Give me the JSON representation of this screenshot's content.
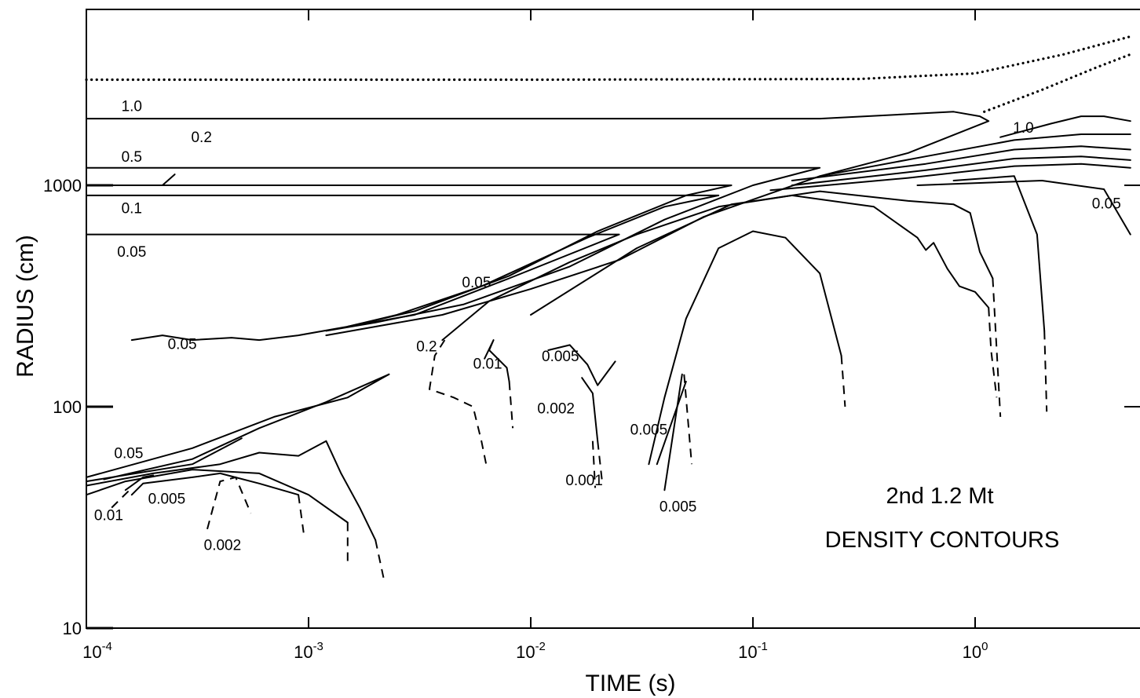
{
  "chart_data": {
    "type": "line",
    "title": "2nd 1.2 Mt",
    "subtitle": "DENSITY CONTOURS",
    "xlabel": "TIME (s)",
    "ylabel": "RADIUS (cm)",
    "x_scale": "log",
    "y_scale": "log",
    "xlim": [
      0.0001,
      5
    ],
    "ylim": [
      10,
      5000
    ],
    "grid": false,
    "legend": "none",
    "x_ticks": [
      {
        "value": 0.0001,
        "base": "10",
        "exp": "-4"
      },
      {
        "value": 0.001,
        "base": "10",
        "exp": "-3"
      },
      {
        "value": 0.01,
        "base": "10",
        "exp": "-2"
      },
      {
        "value": 0.1,
        "base": "10",
        "exp": "-1"
      },
      {
        "value": 1,
        "base": "10",
        "exp": "0"
      }
    ],
    "y_ticks": [
      {
        "value": 10,
        "label": "10"
      },
      {
        "value": 100,
        "label": "100"
      },
      {
        "value": 1000,
        "label": "1000"
      }
    ],
    "series": [
      {
        "style": "dotted",
        "points": [
          [
            0.0001,
            3000
          ],
          [
            0.01,
            3000
          ],
          [
            0.3,
            3020
          ],
          [
            1,
            3200
          ],
          [
            2.5,
            3900
          ],
          [
            5,
            4700
          ]
        ]
      },
      {
        "style": "dotted",
        "points": [
          [
            1.1,
            2150
          ],
          [
            2,
            2700
          ],
          [
            3.5,
            3400
          ],
          [
            5,
            3900
          ]
        ]
      },
      {
        "style": "solid",
        "points": [
          [
            0.0001,
            2000
          ],
          [
            0.2,
            2000
          ],
          [
            0.8,
            2150
          ],
          [
            1.05,
            2050
          ],
          [
            1.15,
            1950
          ],
          [
            0.5,
            1400
          ],
          [
            0.2,
            1100
          ],
          [
            0.06,
            720
          ],
          [
            0.025,
            460
          ],
          [
            0.01,
            340
          ],
          [
            0.004,
            260
          ],
          [
            0.002,
            230
          ],
          [
            0.0012,
            210
          ]
        ]
      },
      {
        "style": "solid",
        "points": [
          [
            0.0001,
            1200
          ],
          [
            0.2,
            1200
          ],
          [
            0.1,
            1000
          ],
          [
            0.04,
            700
          ],
          [
            0.015,
            430
          ],
          [
            0.005,
            290
          ],
          [
            0.002,
            240
          ],
          [
            0.0012,
            220
          ]
        ]
      },
      {
        "style": "solid",
        "points": [
          [
            0.0001,
            1000
          ],
          [
            0.08,
            1000
          ],
          [
            0.05,
            900
          ],
          [
            0.02,
            620
          ],
          [
            0.008,
            390
          ],
          [
            0.003,
            270
          ],
          [
            0.0015,
            230
          ]
        ]
      },
      {
        "style": "solid",
        "points": [
          [
            0.0001,
            900
          ],
          [
            0.07,
            900
          ],
          [
            0.04,
            800
          ],
          [
            0.018,
            580
          ],
          [
            0.006,
            350
          ],
          [
            0.0025,
            260
          ],
          [
            0.0015,
            230
          ]
        ]
      },
      {
        "style": "solid",
        "points": [
          [
            0.0001,
            600
          ],
          [
            0.025,
            600
          ],
          [
            0.008,
            380
          ],
          [
            0.003,
            260
          ],
          [
            0.0015,
            230
          ],
          [
            0.0009,
            210
          ],
          [
            0.0006,
            200
          ],
          [
            0.00045,
            205
          ],
          [
            0.0003,
            200
          ],
          [
            0.00022,
            210
          ],
          [
            0.00016,
            200
          ]
        ]
      },
      {
        "style": "solid",
        "points": [
          [
            0.00022,
            1000
          ],
          [
            0.00025,
            1120
          ]
        ]
      },
      {
        "style": "solid",
        "points": [
          [
            0.2,
            1100
          ],
          [
            0.6,
            1350
          ],
          [
            1.5,
            1600
          ],
          [
            3,
            1700
          ],
          [
            5,
            1700
          ]
        ]
      },
      {
        "style": "solid",
        "points": [
          [
            0.15,
            1050
          ],
          [
            0.6,
            1250
          ],
          [
            1.5,
            1450
          ],
          [
            3,
            1500
          ],
          [
            5,
            1450
          ]
        ]
      },
      {
        "style": "solid",
        "points": [
          [
            0.15,
            1000
          ],
          [
            0.6,
            1170
          ],
          [
            1.5,
            1320
          ],
          [
            3,
            1350
          ],
          [
            5,
            1300
          ]
        ]
      },
      {
        "style": "solid",
        "points": [
          [
            0.12,
            950
          ],
          [
            0.5,
            1080
          ],
          [
            1.5,
            1220
          ],
          [
            3,
            1250
          ],
          [
            5,
            1200
          ]
        ]
      },
      {
        "style": "solid",
        "points": [
          [
            1.3,
            1650
          ],
          [
            2.2,
            1900
          ],
          [
            3,
            2050
          ],
          [
            3.8,
            2050
          ],
          [
            5,
            1950
          ]
        ]
      },
      {
        "style": "solid",
        "points": [
          [
            0.01,
            260
          ],
          [
            0.03,
            520
          ],
          [
            0.08,
            820
          ],
          [
            0.2,
            940
          ],
          [
            0.5,
            850
          ],
          [
            0.8,
            820
          ],
          [
            0.95,
            750
          ],
          [
            1.05,
            500
          ],
          [
            1.2,
            380
          ]
        ]
      },
      {
        "style": "dashed",
        "points": [
          [
            1.2,
            380
          ],
          [
            1.3,
            90
          ]
        ]
      },
      {
        "style": "solid",
        "points": [
          [
            0.8,
            1050
          ],
          [
            1.5,
            1100
          ],
          [
            1.9,
            600
          ],
          [
            2.05,
            220
          ]
        ]
      },
      {
        "style": "dashed",
        "points": [
          [
            2.05,
            220
          ],
          [
            2.1,
            95
          ]
        ]
      },
      {
        "style": "solid",
        "points": [
          [
            0.55,
            1000
          ],
          [
            2,
            1050
          ],
          [
            3.8,
            960
          ],
          [
            5,
            600
          ]
        ]
      },
      {
        "style": "solid",
        "points": [
          [
            0.004,
            200
          ],
          [
            0.0065,
            300
          ],
          [
            0.015,
            450
          ],
          [
            0.03,
            600
          ],
          [
            0.07,
            800
          ],
          [
            0.15,
            900
          ],
          [
            0.35,
            800
          ],
          [
            0.55,
            580
          ],
          [
            0.6,
            510
          ],
          [
            0.65,
            550
          ],
          [
            0.75,
            420
          ],
          [
            0.85,
            350
          ],
          [
            1,
            330
          ],
          [
            1.15,
            280
          ]
        ]
      },
      {
        "style": "dashed",
        "points": [
          [
            1.15,
            280
          ],
          [
            1.18,
            180
          ],
          [
            1.25,
            110
          ]
        ]
      },
      {
        "style": "dashed",
        "points": [
          [
            0.0041,
            200
          ],
          [
            0.0037,
            170
          ],
          [
            0.0035,
            120
          ],
          [
            0.0045,
            110
          ],
          [
            0.0055,
            100
          ],
          [
            0.006,
            70
          ],
          [
            0.0063,
            55
          ]
        ]
      },
      {
        "style": "solid",
        "points": [
          [
            0.034,
            55
          ],
          [
            0.04,
            110
          ],
          [
            0.05,
            250
          ],
          [
            0.07,
            520
          ],
          [
            0.1,
            620
          ],
          [
            0.14,
            580
          ],
          [
            0.2,
            400
          ],
          [
            0.25,
            170
          ]
        ]
      },
      {
        "style": "dashed",
        "points": [
          [
            0.25,
            170
          ],
          [
            0.26,
            100
          ]
        ]
      },
      {
        "style": "solid",
        "points": [
          [
            0.0062,
            165
          ],
          [
            0.0068,
            200
          ],
          [
            0.0065,
            180
          ],
          [
            0.0078,
            150
          ],
          [
            0.008,
            130
          ]
        ]
      },
      {
        "style": "dashed",
        "points": [
          [
            0.008,
            130
          ],
          [
            0.0083,
            80
          ]
        ]
      },
      {
        "style": "solid",
        "points": [
          [
            0.012,
            180
          ],
          [
            0.015,
            190
          ],
          [
            0.018,
            155
          ],
          [
            0.02,
            125
          ],
          [
            0.024,
            160
          ]
        ]
      },
      {
        "style": "solid",
        "points": [
          [
            0.017,
            135
          ],
          [
            0.019,
            115
          ],
          [
            0.02,
            70
          ]
        ]
      },
      {
        "style": "dashed",
        "points": [
          [
            0.02,
            70
          ],
          [
            0.021,
            45
          ]
        ]
      },
      {
        "style": "dashed",
        "points": [
          [
            0.019,
            70
          ],
          [
            0.0195,
            43
          ]
        ]
      },
      {
        "style": "solid",
        "points": [
          [
            0.037,
            55
          ],
          [
            0.05,
            130
          ]
        ]
      },
      {
        "style": "solid",
        "points": [
          [
            0.04,
            42
          ],
          [
            0.048,
            140
          ]
        ]
      },
      {
        "style": "dashed",
        "points": [
          [
            0.049,
            140
          ],
          [
            0.053,
            55
          ]
        ]
      },
      {
        "style": "solid",
        "points": [
          [
            0.0001,
            48
          ],
          [
            0.0003,
            65
          ],
          [
            0.0007,
            90
          ],
          [
            0.0015,
            110
          ],
          [
            0.0023,
            140
          ]
        ]
      },
      {
        "style": "solid",
        "points": [
          [
            0.00012,
            47
          ],
          [
            0.0003,
            58
          ],
          [
            0.0006,
            80
          ],
          [
            0.0012,
            105
          ],
          [
            0.0023,
            140
          ]
        ]
      },
      {
        "style": "solid",
        "points": [
          [
            0.0001,
            46
          ],
          [
            0.0003,
            55
          ],
          [
            0.0005,
            72
          ]
        ]
      },
      {
        "style": "solid",
        "points": [
          [
            0.0001,
            44
          ],
          [
            0.0002,
            50
          ],
          [
            0.0004,
            55
          ],
          [
            0.0006,
            62
          ],
          [
            0.0009,
            60
          ],
          [
            0.0012,
            70
          ],
          [
            0.0014,
            50
          ],
          [
            0.0017,
            35
          ],
          [
            0.002,
            25
          ]
        ]
      },
      {
        "style": "dashed",
        "points": [
          [
            0.002,
            25
          ],
          [
            0.0022,
            16
          ]
        ]
      },
      {
        "style": "solid",
        "points": [
          [
            0.0001,
            40
          ],
          [
            0.00015,
            46
          ],
          [
            0.0003,
            52
          ],
          [
            0.0006,
            50
          ],
          [
            0.001,
            40
          ],
          [
            0.0015,
            30
          ]
        ]
      },
      {
        "style": "dashed",
        "points": [
          [
            0.0015,
            30
          ],
          [
            0.0015,
            20
          ]
        ]
      },
      {
        "style": "solid",
        "points": [
          [
            0.00016,
            40
          ],
          [
            0.00018,
            45
          ],
          [
            0.0003,
            48
          ],
          [
            0.0004,
            50
          ],
          [
            0.0006,
            45
          ],
          [
            0.0009,
            40
          ]
        ]
      },
      {
        "style": "dashed",
        "points": [
          [
            0.0009,
            40
          ],
          [
            0.00095,
            27
          ]
        ]
      },
      {
        "style": "dashed",
        "points": [
          [
            0.00013,
            35
          ],
          [
            0.00016,
            43
          ]
        ]
      },
      {
        "style": "dashed",
        "points": [
          [
            0.00035,
            28
          ],
          [
            0.0004,
            46
          ],
          [
            0.00047,
            48
          ],
          [
            0.00055,
            33
          ]
        ]
      },
      {
        "style": "solid",
        "points": [
          [
            0.00015,
            42
          ],
          [
            0.00018,
            48
          ],
          [
            0.0002,
            49
          ]
        ]
      }
    ],
    "annotations": [
      {
        "text": "1.0",
        "x": 0.00016,
        "y": 2250
      },
      {
        "text": "0.5",
        "x": 0.00016,
        "y": 1330
      },
      {
        "text": "0.2",
        "x": 0.00033,
        "y": 1630
      },
      {
        "text": "0.1",
        "x": 0.00016,
        "y": 780
      },
      {
        "text": "0.05",
        "x": 0.00016,
        "y": 495
      },
      {
        "text": "1.0",
        "x": 1.65,
        "y": 1800
      },
      {
        "text": "0.05",
        "x": 3.9,
        "y": 820
      },
      {
        "text": "0.05",
        "x": 0.0057,
        "y": 360
      },
      {
        "text": "0.05",
        "x": 0.00027,
        "y": 190
      },
      {
        "text": "0.2",
        "x": 0.0034,
        "y": 185
      },
      {
        "text": "0.01",
        "x": 0.0064,
        "y": 155
      },
      {
        "text": "0.005",
        "x": 0.0136,
        "y": 167
      },
      {
        "text": "0.002",
        "x": 0.013,
        "y": 97
      },
      {
        "text": "0.005",
        "x": 0.034,
        "y": 78
      },
      {
        "text": "0.001",
        "x": 0.0174,
        "y": 46
      },
      {
        "text": "0.005",
        "x": 0.046,
        "y": 35
      },
      {
        "text": "0.05",
        "x": 0.000155,
        "y": 61
      },
      {
        "text": "0.005",
        "x": 0.00023,
        "y": 38
      },
      {
        "text": "0.01",
        "x": 0.000126,
        "y": 32
      },
      {
        "text": "0.002",
        "x": 0.00041,
        "y": 23.5
      }
    ]
  }
}
